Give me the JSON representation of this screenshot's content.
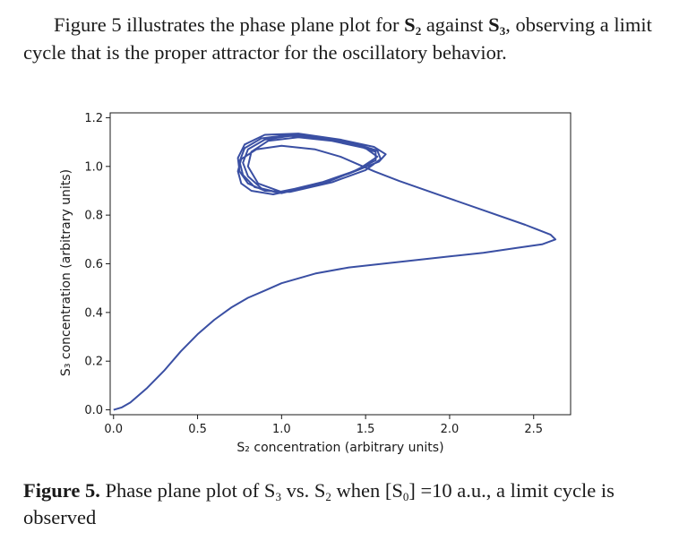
{
  "intro": {
    "text_a": "Figure 5 illustrates the phase plane plot for ",
    "var1": "S",
    "var1_sub": "2",
    "text_b": " against ",
    "var2": "S",
    "var2_sub": "3",
    "text_c": ", observing a limit cycle that is the proper attractor for the oscillatory behavior."
  },
  "caption": {
    "label": "Figure 5.",
    "text_a": " Phase plane plot of S",
    "sub_a": "3",
    "text_b": " vs. S",
    "sub_b": "2",
    "text_c": " when [S",
    "sub_c": "0",
    "text_d": "] =10 a.u., a limit cycle is observed"
  },
  "chart_data": {
    "type": "line",
    "title": "",
    "xlabel": "S₂ concentration (arbitrary units)",
    "ylabel": "S₃ concentration (arbitrary units)",
    "xlim": [
      -0.02,
      2.72
    ],
    "ylim": [
      -0.02,
      1.22
    ],
    "xticks": [
      "0.0",
      "0.5",
      "1.0",
      "1.5",
      "2.0",
      "2.5"
    ],
    "yticks": [
      "0.0",
      "0.2",
      "0.4",
      "0.6",
      "0.8",
      "1.0",
      "1.2"
    ],
    "grid": false,
    "line_color": "#3a4fa3",
    "series": [
      {
        "points": [
          [
            0.0,
            0.0
          ],
          [
            0.05,
            0.01
          ],
          [
            0.1,
            0.03
          ],
          [
            0.2,
            0.09
          ],
          [
            0.3,
            0.16
          ],
          [
            0.4,
            0.24
          ],
          [
            0.5,
            0.31
          ],
          [
            0.6,
            0.37
          ],
          [
            0.7,
            0.42
          ],
          [
            0.8,
            0.46
          ],
          [
            0.9,
            0.49
          ],
          [
            1.0,
            0.52
          ],
          [
            1.2,
            0.56
          ],
          [
            1.4,
            0.585
          ],
          [
            1.6,
            0.6
          ],
          [
            1.8,
            0.615
          ],
          [
            2.0,
            0.63
          ],
          [
            2.2,
            0.645
          ],
          [
            2.4,
            0.665
          ],
          [
            2.55,
            0.68
          ],
          [
            2.63,
            0.7
          ],
          [
            2.6,
            0.72
          ],
          [
            2.45,
            0.76
          ],
          [
            2.2,
            0.82
          ],
          [
            1.95,
            0.88
          ],
          [
            1.7,
            0.94
          ],
          [
            1.55,
            0.98
          ],
          [
            1.45,
            1.01
          ],
          [
            1.35,
            1.04
          ],
          [
            1.2,
            1.07
          ],
          [
            1.0,
            1.085
          ],
          [
            0.85,
            1.07
          ],
          [
            0.76,
            1.03
          ],
          [
            0.74,
            0.98
          ],
          [
            0.76,
            0.93
          ],
          [
            0.82,
            0.9
          ],
          [
            0.95,
            0.885
          ],
          [
            1.15,
            0.915
          ],
          [
            1.4,
            0.97
          ],
          [
            1.58,
            1.02
          ],
          [
            1.62,
            1.05
          ],
          [
            1.55,
            1.08
          ],
          [
            1.35,
            1.11
          ],
          [
            1.1,
            1.135
          ],
          [
            0.9,
            1.13
          ],
          [
            0.78,
            1.09
          ],
          [
            0.74,
            1.035
          ],
          [
            0.75,
            0.98
          ],
          [
            0.8,
            0.93
          ],
          [
            0.9,
            0.9
          ],
          [
            1.05,
            0.895
          ],
          [
            1.3,
            0.935
          ],
          [
            1.5,
            0.985
          ],
          [
            1.59,
            1.03
          ],
          [
            1.57,
            1.065
          ],
          [
            1.45,
            1.09
          ],
          [
            1.25,
            1.12
          ],
          [
            1.05,
            1.13
          ],
          [
            0.88,
            1.115
          ],
          [
            0.78,
            1.075
          ],
          [
            0.75,
            1.02
          ],
          [
            0.77,
            0.965
          ],
          [
            0.84,
            0.915
          ],
          [
            0.97,
            0.893
          ],
          [
            1.2,
            0.925
          ],
          [
            1.43,
            0.98
          ],
          [
            1.56,
            1.025
          ],
          [
            1.56,
            1.06
          ],
          [
            1.45,
            1.085
          ],
          [
            1.25,
            1.115
          ],
          [
            1.05,
            1.125
          ],
          [
            0.9,
            1.11
          ],
          [
            0.8,
            1.07
          ],
          [
            0.77,
            1.015
          ],
          [
            0.8,
            0.96
          ],
          [
            0.88,
            0.91
          ],
          [
            1.0,
            0.89
          ],
          [
            1.25,
            0.93
          ],
          [
            1.45,
            0.985
          ],
          [
            1.57,
            1.04
          ],
          [
            1.5,
            1.075
          ],
          [
            1.3,
            1.105
          ],
          [
            1.1,
            1.12
          ],
          [
            0.92,
            1.105
          ],
          [
            0.82,
            1.06
          ],
          [
            0.8,
            1.0
          ],
          [
            0.86,
            0.93
          ],
          [
            1.0,
            0.895
          ],
          [
            1.3,
            0.945
          ],
          [
            1.5,
            1.0
          ]
        ]
      }
    ]
  }
}
